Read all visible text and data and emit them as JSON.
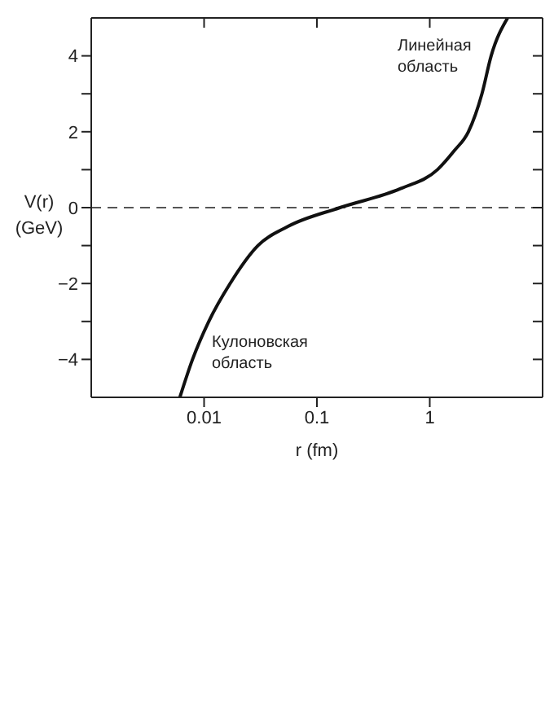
{
  "chart_data": {
    "type": "line",
    "xlabel": "r  (fm)",
    "ylabel": "V(r) (GeV)",
    "x": [
      0.0061,
      0.0079,
      0.011,
      0.017,
      0.03,
      0.055,
      0.16,
      0.55,
      1.17,
      1.65,
      2.2,
      2.9,
      3.5,
      4.9
    ],
    "series": [
      {
        "color": "#111111",
        "values": [
          -5,
          -4,
          -3,
          -2,
          -1,
          -0.5,
          0,
          0.5,
          1,
          1.5,
          2,
          3,
          4,
          5
        ]
      }
    ],
    "log": "x",
    "xlim": [
      0.001,
      10
    ],
    "xticks": [
      0.01,
      0.1,
      1
    ],
    "ylim": [
      -5,
      5
    ],
    "yticks": [
      -4,
      {
        "value": -3,
        "label": null
      },
      -2,
      {
        "value": -1,
        "label": null
      },
      0,
      {
        "value": 1,
        "label": null
      },
      2,
      {
        "value": 3,
        "label": null
      },
      4
    ],
    "ref_lines": [
      {
        "axis": "y",
        "value": 0,
        "color": "#555555",
        "line_style": "dashed"
      }
    ],
    "annotations": [
      "Линейная область",
      "Кулоновская область"
    ],
    "grid": false,
    "marker": "none",
    "line_style": "solid"
  }
}
